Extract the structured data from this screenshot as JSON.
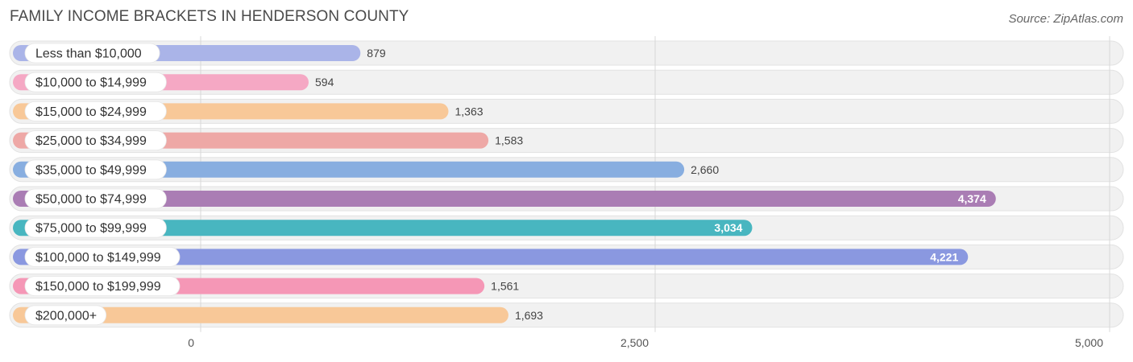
{
  "header": {
    "title": "FAMILY INCOME BRACKETS IN HENDERSON COUNTY",
    "source": "Source: ZipAtlas.com"
  },
  "chart_data": {
    "type": "bar",
    "orientation": "horizontal",
    "categories": [
      "Less than $10,000",
      "$10,000 to $14,999",
      "$15,000 to $24,999",
      "$25,000 to $34,999",
      "$35,000 to $49,999",
      "$50,000 to $74,999",
      "$75,000 to $99,999",
      "$100,000 to $149,999",
      "$150,000 to $199,999",
      "$200,000+"
    ],
    "values": [
      879,
      594,
      1363,
      1583,
      2660,
      4374,
      3034,
      4221,
      1561,
      1693
    ],
    "value_labels": [
      "879",
      "594",
      "1,363",
      "1,583",
      "2,660",
      "4,374",
      "3,034",
      "4,221",
      "1,561",
      "1,693"
    ],
    "colors": [
      "#aab4e8",
      "#f5a8c4",
      "#f8c898",
      "#eea8a6",
      "#88aee0",
      "#aa7db4",
      "#48b6c0",
      "#8a98e0",
      "#f597b6",
      "#f8c898"
    ],
    "xlim": [
      0,
      5000
    ],
    "xticks": [
      0,
      2500,
      5000
    ],
    "xtick_labels": [
      "0",
      "2,500",
      "5,000"
    ],
    "grid": true,
    "title": "FAMILY INCOME BRACKETS IN HENDERSON COUNTY",
    "xlabel": "",
    "ylabel": ""
  }
}
